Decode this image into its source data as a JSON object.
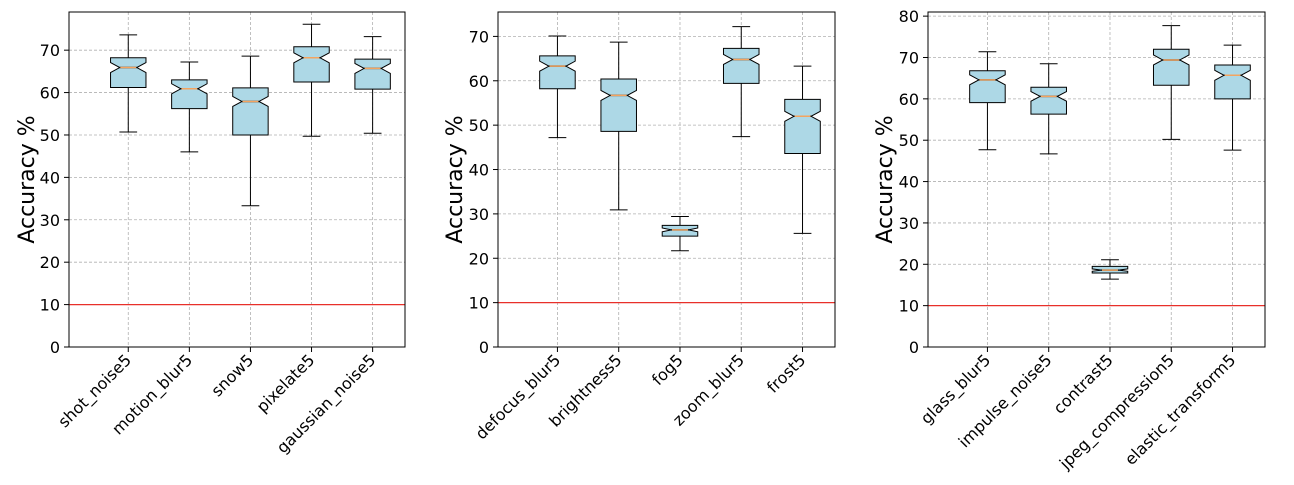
{
  "chart_data": [
    {
      "type": "box",
      "ylabel": "Accuracy %",
      "ylim": [
        0,
        79
      ],
      "yticks": [
        0,
        10,
        20,
        30,
        40,
        50,
        60,
        70
      ],
      "reference_line": 10,
      "reference_color": "#e8302a",
      "box_color": "#add8e6",
      "median_color": "#f4a460",
      "categories": [
        "shot_noise5",
        "motion_blur5",
        "snow5",
        "pixelate5",
        "gaussian_noise5"
      ],
      "boxes": [
        {
          "min": 50.7,
          "q1": 61.2,
          "median": 65.9,
          "q3": 68.2,
          "max": 73.6
        },
        {
          "min": 46.0,
          "q1": 56.2,
          "median": 60.9,
          "q3": 63.0,
          "max": 67.2
        },
        {
          "min": 33.3,
          "q1": 50.0,
          "median": 57.9,
          "q3": 61.1,
          "max": 68.6
        },
        {
          "min": 49.7,
          "q1": 62.5,
          "median": 68.2,
          "q3": 70.8,
          "max": 76.1
        },
        {
          "min": 50.4,
          "q1": 60.8,
          "median": 65.7,
          "q3": 67.9,
          "max": 73.2
        }
      ]
    },
    {
      "type": "box",
      "ylabel": "Accuracy %",
      "ylim": [
        0,
        75.5
      ],
      "yticks": [
        0,
        10,
        20,
        30,
        40,
        50,
        60,
        70
      ],
      "reference_line": 10,
      "reference_color": "#e8302a",
      "box_color": "#add8e6",
      "median_color": "#f4a460",
      "categories": [
        "defocus_blur5",
        "brightness5",
        "fog5",
        "zoom_blur5",
        "frost5"
      ],
      "boxes": [
        {
          "min": 47.2,
          "q1": 58.2,
          "median": 63.3,
          "q3": 65.6,
          "max": 70.1
        },
        {
          "min": 30.9,
          "q1": 48.6,
          "median": 56.7,
          "q3": 60.4,
          "max": 68.7
        },
        {
          "min": 21.7,
          "q1": 25.0,
          "median": 26.4,
          "q3": 27.4,
          "max": 29.4
        },
        {
          "min": 47.4,
          "q1": 59.4,
          "median": 64.8,
          "q3": 67.3,
          "max": 72.2
        },
        {
          "min": 25.6,
          "q1": 43.6,
          "median": 52.0,
          "q3": 55.8,
          "max": 63.3
        }
      ]
    },
    {
      "type": "box",
      "ylabel": "Accuracy %",
      "ylim": [
        0,
        81
      ],
      "yticks": [
        0,
        10,
        20,
        30,
        40,
        50,
        60,
        70,
        80
      ],
      "reference_line": 10,
      "reference_color": "#e8302a",
      "box_color": "#add8e6",
      "median_color": "#f4a460",
      "categories": [
        "glass_blur5",
        "impulse_noise5",
        "contrast5",
        "jpeg_compression5",
        "elastic_transform5"
      ],
      "boxes": [
        {
          "min": 47.7,
          "q1": 59.1,
          "median": 64.6,
          "q3": 66.8,
          "max": 71.4
        },
        {
          "min": 46.7,
          "q1": 56.3,
          "median": 60.6,
          "q3": 62.8,
          "max": 68.5
        },
        {
          "min": 16.4,
          "q1": 17.9,
          "median": 18.6,
          "q3": 19.5,
          "max": 21.1
        },
        {
          "min": 50.2,
          "q1": 63.3,
          "median": 69.4,
          "q3": 72.0,
          "max": 77.7
        },
        {
          "min": 47.6,
          "q1": 60.0,
          "median": 65.7,
          "q3": 68.2,
          "max": 73.0
        }
      ]
    }
  ]
}
